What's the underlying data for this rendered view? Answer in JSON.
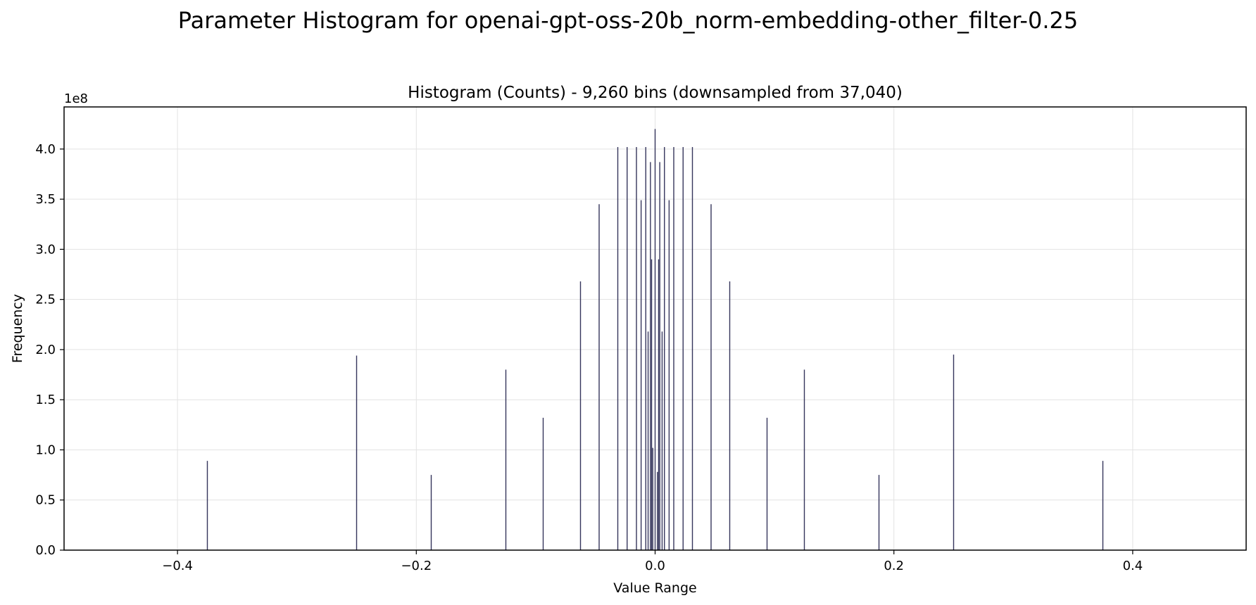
{
  "figure": {
    "suptitle": "Parameter Histogram for openai-gpt-oss-20b_norm-embedding-other_filter-0.25"
  },
  "chart_data": {
    "type": "bar",
    "title": "Histogram (Counts) - 9,260 bins (downsampled from 37,040)",
    "xlabel": "Value Range",
    "ylabel": "Frequency",
    "y_scale_label": "1e8",
    "xlim": [
      -0.495,
      0.495
    ],
    "ylim": [
      0,
      442000000
    ],
    "grid": true,
    "bar_color": "#1f1f4a",
    "xticks": [
      {
        "value": -0.4,
        "label": "−0.4"
      },
      {
        "value": -0.2,
        "label": "−0.2"
      },
      {
        "value": 0.0,
        "label": "0.0"
      },
      {
        "value": 0.2,
        "label": "0.2"
      },
      {
        "value": 0.4,
        "label": "0.4"
      }
    ],
    "yticks": [
      {
        "value": 0,
        "label": "0.0"
      },
      {
        "value": 50000000,
        "label": "0.5"
      },
      {
        "value": 100000000,
        "label": "1.0"
      },
      {
        "value": 150000000,
        "label": "1.5"
      },
      {
        "value": 200000000,
        "label": "2.0"
      },
      {
        "value": 250000000,
        "label": "2.5"
      },
      {
        "value": 300000000,
        "label": "3.0"
      },
      {
        "value": 350000000,
        "label": "3.5"
      },
      {
        "value": 400000000,
        "label": "4.0"
      }
    ],
    "bins": [
      {
        "x": -0.375,
        "count": 89000000
      },
      {
        "x": -0.25,
        "count": 194000000
      },
      {
        "x": -0.1875,
        "count": 75000000
      },
      {
        "x": -0.125,
        "count": 180000000
      },
      {
        "x": -0.09375,
        "count": 132000000
      },
      {
        "x": -0.0625,
        "count": 268000000
      },
      {
        "x": -0.046875,
        "count": 345000000
      },
      {
        "x": -0.03125,
        "count": 402000000
      },
      {
        "x": -0.0234375,
        "count": 402000000
      },
      {
        "x": -0.015625,
        "count": 402000000
      },
      {
        "x": -0.01171875,
        "count": 349000000
      },
      {
        "x": -0.0078125,
        "count": 402000000
      },
      {
        "x": -0.005859375,
        "count": 218000000
      },
      {
        "x": -0.00390625,
        "count": 387000000
      },
      {
        "x": -0.0029296875,
        "count": 290000000
      },
      {
        "x": -0.001953125,
        "count": 102000000
      },
      {
        "x": 0.0,
        "count": 420000000
      },
      {
        "x": 0.001953125,
        "count": 78000000
      },
      {
        "x": 0.0029296875,
        "count": 290000000
      },
      {
        "x": 0.00390625,
        "count": 387000000
      },
      {
        "x": 0.005859375,
        "count": 218000000
      },
      {
        "x": 0.0078125,
        "count": 402000000
      },
      {
        "x": 0.01171875,
        "count": 349000000
      },
      {
        "x": 0.015625,
        "count": 402000000
      },
      {
        "x": 0.0234375,
        "count": 402000000
      },
      {
        "x": 0.03125,
        "count": 402000000
      },
      {
        "x": 0.046875,
        "count": 345000000
      },
      {
        "x": 0.0625,
        "count": 268000000
      },
      {
        "x": 0.09375,
        "count": 132000000
      },
      {
        "x": 0.125,
        "count": 180000000
      },
      {
        "x": 0.1875,
        "count": 75000000
      },
      {
        "x": 0.25,
        "count": 195000000
      },
      {
        "x": 0.375,
        "count": 89000000
      }
    ]
  }
}
